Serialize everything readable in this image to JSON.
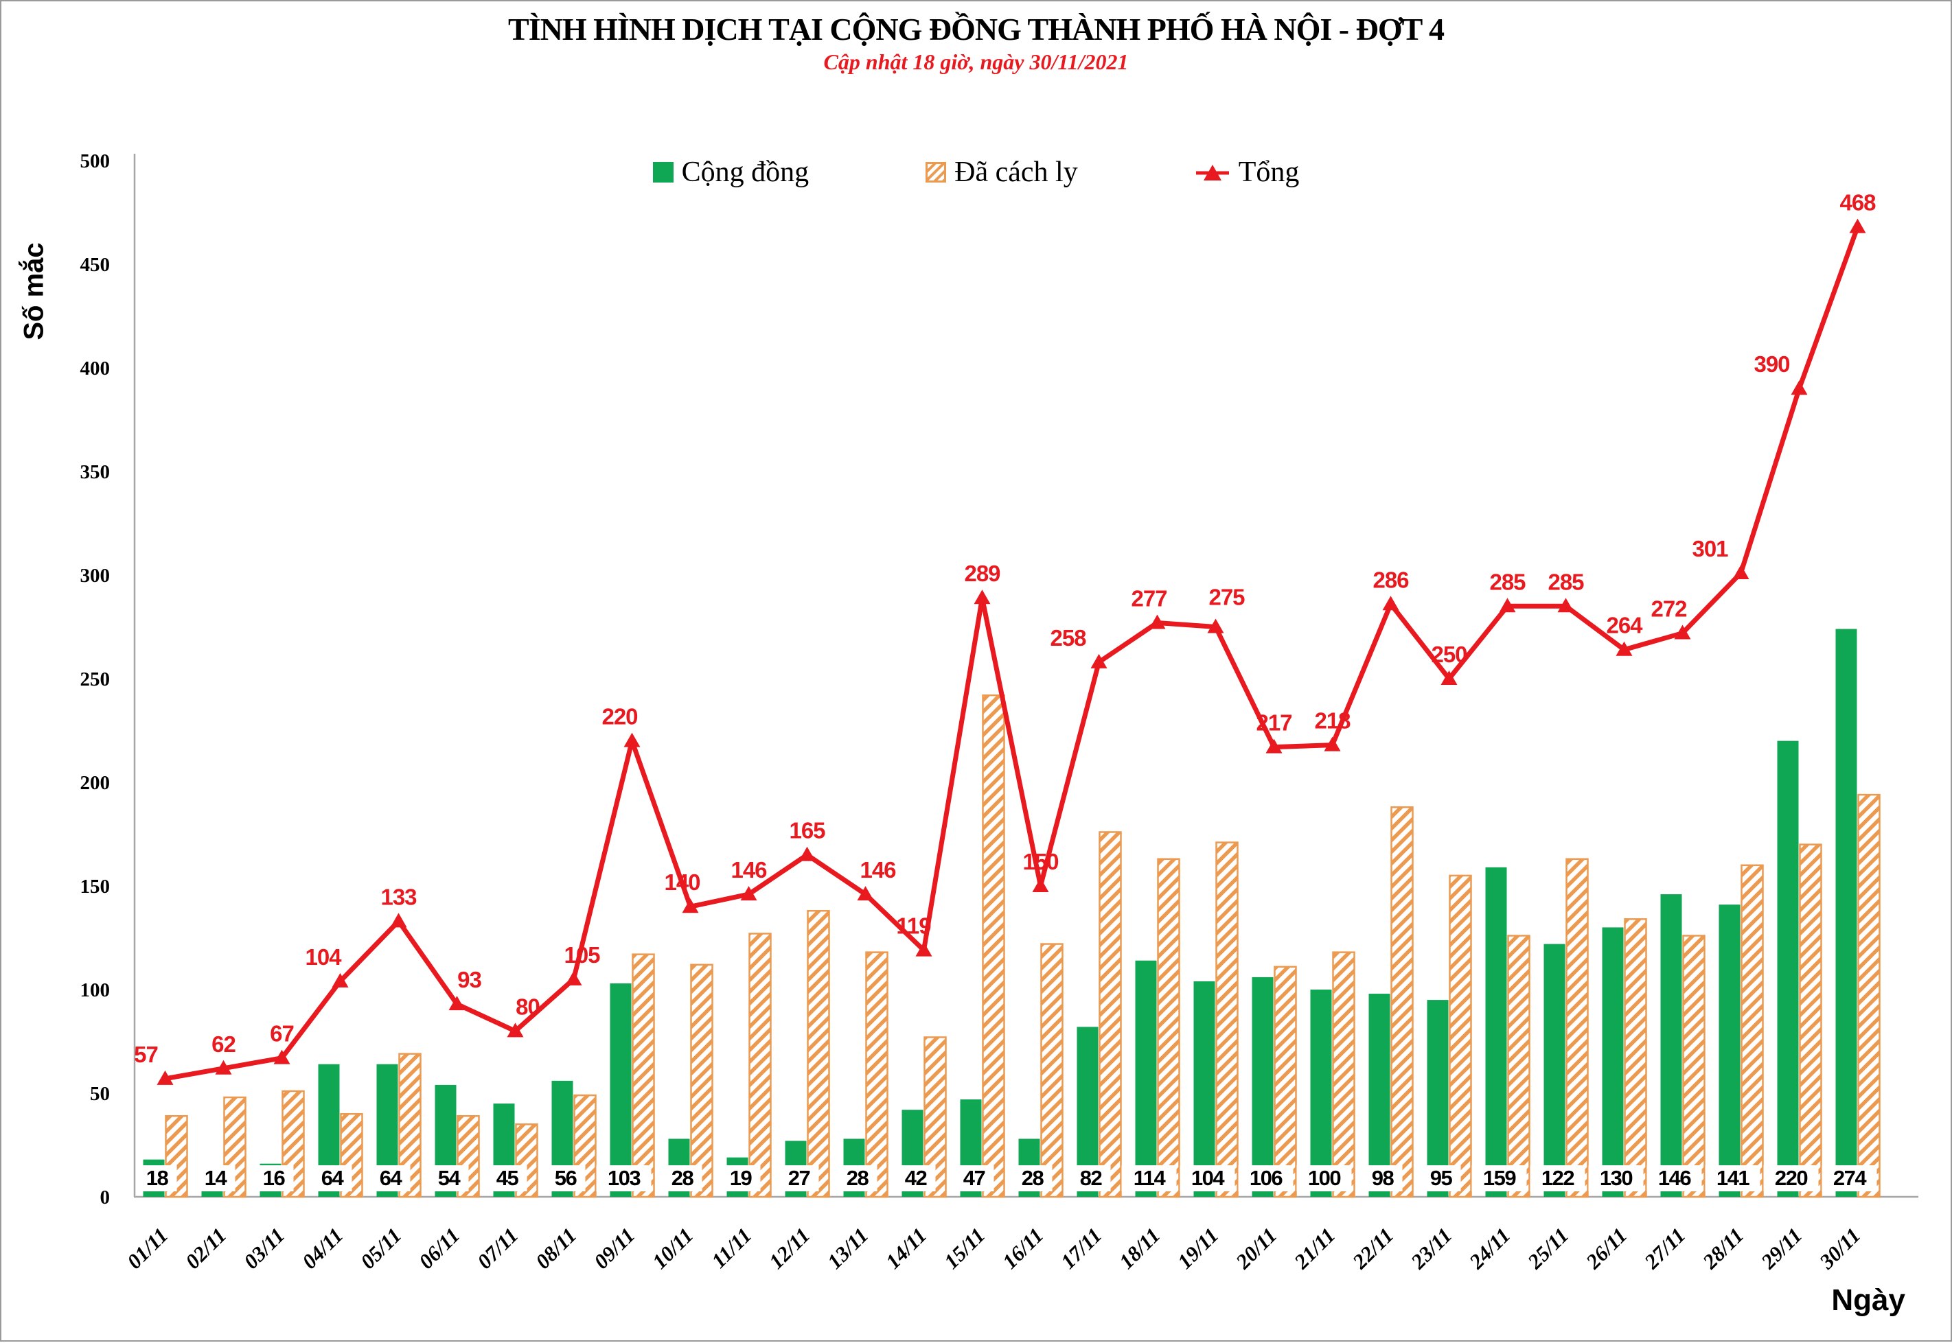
{
  "chart_data": {
    "type": "combo",
    "title": "TÌNH HÌNH DỊCH TẠI CỘNG ĐỒNG THÀNH PHỐ HÀ NỘI - ĐỢT 4",
    "subtitle": "Cập nhật 18 giờ, ngày 30/11/2021",
    "xlabel": "Ngày",
    "ylabel": "Số mắc",
    "ylim": [
      0,
      500
    ],
    "yticks": [
      0,
      50,
      100,
      150,
      200,
      250,
      300,
      350,
      400,
      450,
      500
    ],
    "grid": false,
    "legend_position": "top-center",
    "categories": [
      "01/11",
      "02/11",
      "03/11",
      "04/11",
      "05/11",
      "06/11",
      "07/11",
      "08/11",
      "09/11",
      "10/11",
      "11/11",
      "12/11",
      "13/11",
      "14/11",
      "15/11",
      "16/11",
      "17/11",
      "18/11",
      "19/11",
      "20/11",
      "21/11",
      "22/11",
      "23/11",
      "24/11",
      "25/11",
      "26/11",
      "27/11",
      "28/11",
      "29/11",
      "30/11"
    ],
    "series": [
      {
        "name": "Cộng đồng",
        "type": "bar",
        "color": "#0fa654",
        "values": [
          18,
          14,
          16,
          64,
          64,
          54,
          45,
          56,
          103,
          28,
          19,
          27,
          28,
          42,
          47,
          28,
          82,
          114,
          104,
          106,
          100,
          98,
          95,
          159,
          122,
          130,
          146,
          141,
          220,
          274
        ],
        "value_labels_shown": true
      },
      {
        "name": "Đã cách ly",
        "type": "bar",
        "style": "hatched",
        "color": "#ec9a50",
        "values": [
          39,
          48,
          51,
          40,
          69,
          39,
          35,
          49,
          117,
          112,
          127,
          138,
          118,
          77,
          242,
          122,
          176,
          163,
          171,
          111,
          118,
          188,
          155,
          126,
          163,
          134,
          126,
          160,
          170,
          194
        ],
        "value_labels_shown": false
      },
      {
        "name": "Tổng",
        "type": "line",
        "marker": "triangle-up",
        "color": "#e8191f",
        "values": [
          57,
          62,
          67,
          104,
          133,
          93,
          80,
          105,
          220,
          140,
          146,
          165,
          146,
          119,
          289,
          150,
          258,
          277,
          275,
          217,
          218,
          286,
          250,
          285,
          285,
          264,
          272,
          301,
          390,
          468
        ],
        "value_labels_shown": true
      }
    ],
    "axis_color": "#a6a6a6"
  }
}
